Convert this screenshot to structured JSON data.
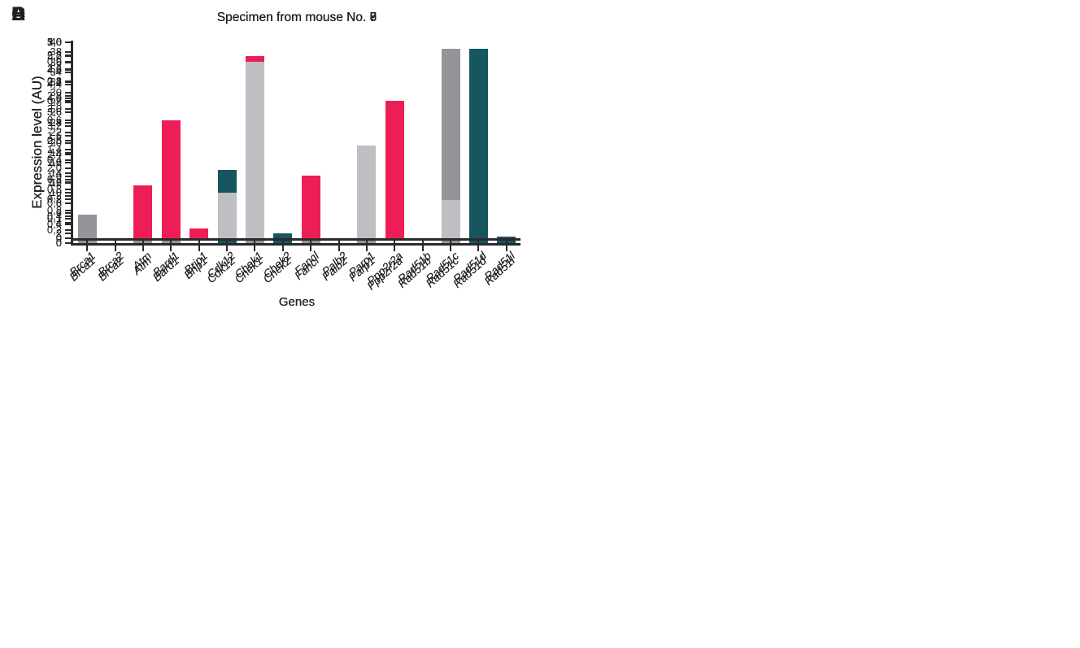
{
  "figure_title": "Gene expression bar charts, four specimens",
  "shared": {
    "ylabel": "Expression level (AU)",
    "xlabel": "Genes",
    "text_color": "#231f20",
    "axis_color": "#2b292c"
  },
  "chart_data": [
    {
      "type": "bar",
      "panel_letter": "A",
      "title": "Specimen from mouse No. 6",
      "xlabel": "Genes",
      "ylabel": "Expression level (AU)",
      "categories": [
        "Brca1",
        "Brca2",
        "Atm",
        "Bard1",
        "Brip1",
        "Cdk12",
        "Chek1",
        "Chek2",
        "Fancl",
        "Palb2",
        "Parp1",
        "Ppp2r2a",
        "Rad51b",
        "Rad51c",
        "Rad51d",
        "Rad51l"
      ],
      "values": [
        1.9,
        0,
        6.7,
        5.7,
        0,
        14.5,
        27.7,
        1.9,
        6.0,
        0,
        8.4,
        0,
        0,
        0,
        38.7,
        1.3
      ],
      "ylim": [
        0,
        40
      ],
      "ytick_step": 2,
      "ytick_labels": [
        "0",
        "2",
        "4",
        "6",
        "8",
        "10",
        "12",
        "14",
        "16",
        "18",
        "20",
        "22",
        "24",
        "26",
        "28",
        "30",
        "32",
        "34",
        "36",
        "38",
        "40"
      ],
      "bar_color": "#15565f",
      "grid": false,
      "legend": null
    },
    {
      "type": "bar",
      "panel_letter": "B",
      "title": "Specimen from mouse No. 7",
      "xlabel": "Genes",
      "ylabel": "Expression level (AU)",
      "categories": [
        "Brca1",
        "Brca2",
        "Atm",
        "Bard1",
        "Brip1",
        "Cdk12",
        "Chek1",
        "Chek2",
        "Fancl",
        "Palb2",
        "Parp1",
        "Ppp2r2a",
        "Rad51b",
        "Rad51c",
        "Rad51d",
        "Rad51l"
      ],
      "values": [
        0.43,
        0,
        0.1,
        0.5,
        0,
        0,
        0.68,
        0,
        0.17,
        0,
        1.0,
        0,
        0,
        2.9,
        0,
        0
      ],
      "ylim": [
        0,
        3.0
      ],
      "ytick_step": 0.2,
      "ytick_labels": [
        "0",
        "0,2",
        "0,4",
        "0,6",
        "0,8",
        "1,0",
        "1,2",
        "1,4",
        "1,6",
        "1,8",
        "2,0",
        "2,2",
        "2,4",
        "2,6",
        "2,8",
        "3,0"
      ],
      "bar_color": "#939598",
      "grid": false,
      "legend": null
    },
    {
      "type": "bar",
      "panel_letter": "C",
      "title": "Specimen from mouse No. 8",
      "xlabel": "Genes",
      "ylabel": "Expression level (AU)",
      "categories": [
        "Brca1",
        "Brca2",
        "Atm",
        "Bard1",
        "Brip1",
        "Cdk12",
        "Chek1",
        "Chek2",
        "Fancl",
        "Palb2",
        "Parp1",
        "Ppp2r2a",
        "Rad51b",
        "Rad51c",
        "Rad51d",
        "Rad51l"
      ],
      "values": [
        0,
        0,
        0.27,
        0.6,
        0.05,
        0,
        0.93,
        0,
        0.32,
        0,
        0.27,
        0.7,
        0,
        0,
        0,
        0
      ],
      "ylim": [
        0,
        1.0
      ],
      "ytick_step": 0.1,
      "ytick_labels": [
        "0",
        "0,1",
        "0,2",
        "0,3",
        "0,4",
        "0,5",
        "0,6",
        "0,7",
        "0,8",
        "0,9",
        "1,0"
      ],
      "bar_color": "#ed1e55",
      "grid": false,
      "legend": null
    },
    {
      "type": "bar",
      "panel_letter": "D",
      "title": "Specimen from mouse No. 9",
      "xlabel": "Genes",
      "ylabel": "Expression level (AU)",
      "categories": [
        "Brca1",
        "Brca2",
        "Atm",
        "Bard1",
        "Brip1",
        "Cdk12",
        "Chek1",
        "Chek2",
        "Fancl",
        "Palb2",
        "Parp1",
        "Ppp2r2a",
        "Rad51b",
        "Rad51c",
        "Rad51d",
        "Rad51l"
      ],
      "values": [
        0,
        0,
        0,
        0,
        0,
        1.3,
        5.05,
        0,
        0,
        0,
        2.65,
        0,
        0,
        1.1,
        0,
        0
      ],
      "ylim": [
        0,
        5.6
      ],
      "ytick_step": 0.4,
      "ytick_labels": [
        "0",
        "0,4",
        "0,8",
        "1,2",
        "1,6",
        "2,0",
        "2,4",
        "2,8",
        "3,2",
        "3,6",
        "4,0",
        "4,4",
        "4,8",
        "5,2",
        "5,6"
      ],
      "bar_color": "#bdbfc3",
      "grid": false,
      "legend": null
    }
  ]
}
